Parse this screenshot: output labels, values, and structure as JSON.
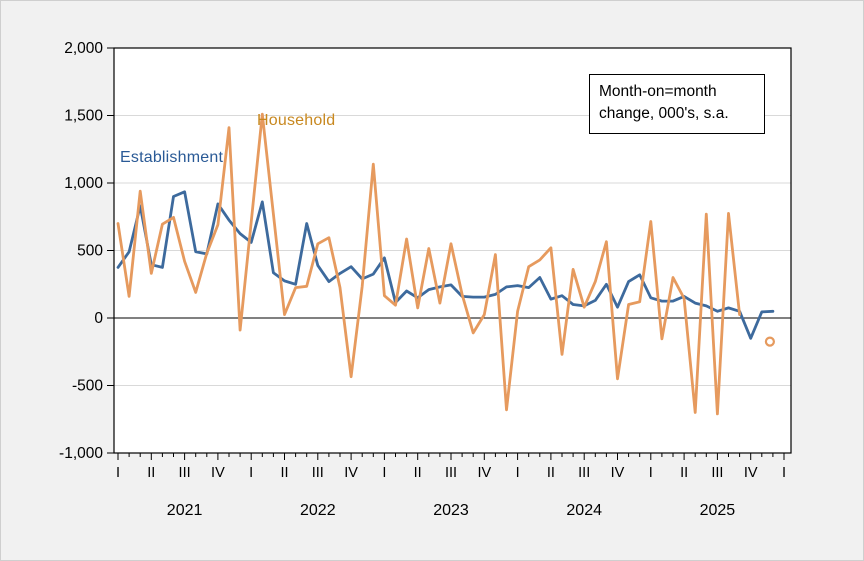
{
  "figure": {
    "background": "#f1f1f1",
    "plot_background": "#ffffff",
    "annotation_box": {
      "line1": "Month-on=month",
      "line2": "change, 000's, s.a."
    },
    "series_labels": {
      "establishment": "Establishment",
      "household": "Household"
    }
  },
  "chart_data": {
    "type": "line",
    "title": "",
    "xlabel": "",
    "ylabel": "",
    "units": "thousands, seasonally adjusted, month-on-month change",
    "ylim": [
      -1000,
      2000
    ],
    "grid": "horizontal",
    "zero_line": true,
    "legend_position": "in-plot text labels",
    "y_ticks": [
      2000,
      1500,
      1000,
      500,
      0,
      -500,
      -1000
    ],
    "y_tick_labels": [
      "2,000",
      "1,500",
      "1,000",
      "500",
      "0",
      "-500",
      "-1,000"
    ],
    "quarter_labels": [
      "I",
      "II",
      "III",
      "IV",
      "I",
      "II",
      "III",
      "IV",
      "I",
      "II",
      "III",
      "IV",
      "I",
      "II",
      "III",
      "IV",
      "I",
      "II",
      "III",
      "IV",
      "I"
    ],
    "year_labels": [
      "2021",
      "2022",
      "2023",
      "2024",
      "2025"
    ],
    "months": [
      "2021-01",
      "2021-02",
      "2021-03",
      "2021-04",
      "2021-05",
      "2021-06",
      "2021-07",
      "2021-08",
      "2021-09",
      "2021-10",
      "2021-11",
      "2021-12",
      "2022-01",
      "2022-02",
      "2022-03",
      "2022-04",
      "2022-05",
      "2022-06",
      "2022-07",
      "2022-08",
      "2022-09",
      "2022-10",
      "2022-11",
      "2022-12",
      "2023-01",
      "2023-02",
      "2023-03",
      "2023-04",
      "2023-05",
      "2023-06",
      "2023-07",
      "2023-08",
      "2023-09",
      "2023-10",
      "2023-11",
      "2023-12",
      "2024-01",
      "2024-02",
      "2024-03",
      "2024-04",
      "2024-05",
      "2024-06",
      "2024-07",
      "2024-08",
      "2024-09",
      "2024-10",
      "2024-11",
      "2024-12",
      "2025-01",
      "2025-02",
      "2025-03",
      "2025-04",
      "2025-05",
      "2025-06",
      "2025-07",
      "2025-08",
      "2025-09",
      "2025-10",
      "2025-11",
      "2025-12"
    ],
    "series": [
      {
        "name": "Establishment",
        "color": "#3d6a9d",
        "values": [
          375,
          490,
          830,
          395,
          375,
          900,
          935,
          490,
          475,
          845,
          725,
          625,
          560,
          860,
          335,
          275,
          250,
          700,
          390,
          270,
          330,
          380,
          290,
          325,
          445,
          115,
          200,
          150,
          210,
          230,
          245,
          160,
          155,
          155,
          175,
          230,
          240,
          225,
          300,
          140,
          165,
          100,
          90,
          130,
          250,
          80,
          270,
          320,
          150,
          125,
          125,
          160,
          110,
          90,
          50,
          75,
          50,
          -150,
          45,
          50
        ]
      },
      {
        "name": "Household",
        "color": "#e69a5e",
        "values": [
          700,
          160,
          940,
          330,
          695,
          745,
          420,
          190,
          480,
          690,
          1410,
          -90,
          710,
          1510,
          770,
          25,
          225,
          235,
          550,
          595,
          225,
          -435,
          235,
          1140,
          165,
          95,
          585,
          75,
          515,
          110,
          550,
          175,
          -110,
          25,
          470,
          -680,
          50,
          380,
          430,
          520,
          -270,
          360,
          80,
          270,
          565,
          -450,
          100,
          120,
          715,
          -155,
          300,
          145,
          -700,
          770,
          -710,
          775,
          25,
          null,
          null,
          null
        ]
      }
    ],
    "household_open_marker": {
      "month": "2025-12",
      "value": -175
    }
  }
}
